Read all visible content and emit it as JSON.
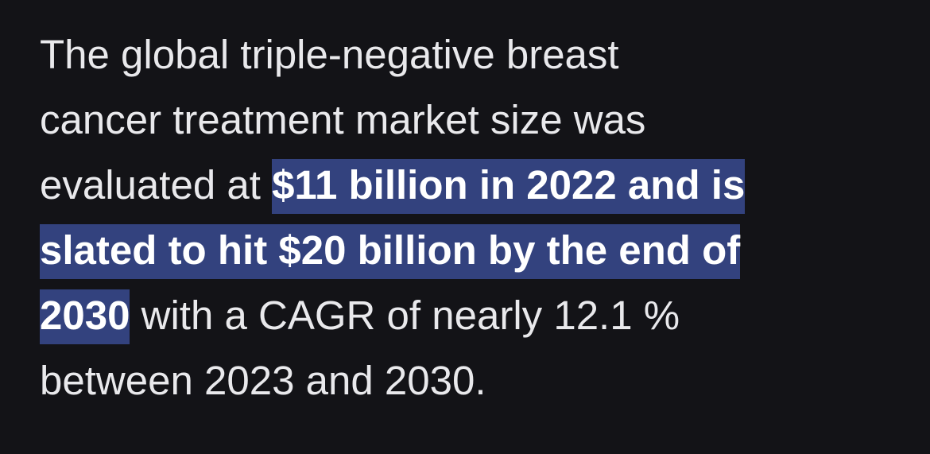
{
  "paragraph": {
    "lines": [
      [
        "The global triple-negative breast"
      ],
      [
        "cancer treatment market size was"
      ],
      [
        "evaluated at ",
        "$11 billion in 2022 and is"
      ],
      [
        "slated to hit $20 billion by the end of"
      ],
      [
        "2030",
        " with a CAGR of nearly 12.1 %"
      ],
      [
        "between 2023 and 2030."
      ]
    ]
  }
}
